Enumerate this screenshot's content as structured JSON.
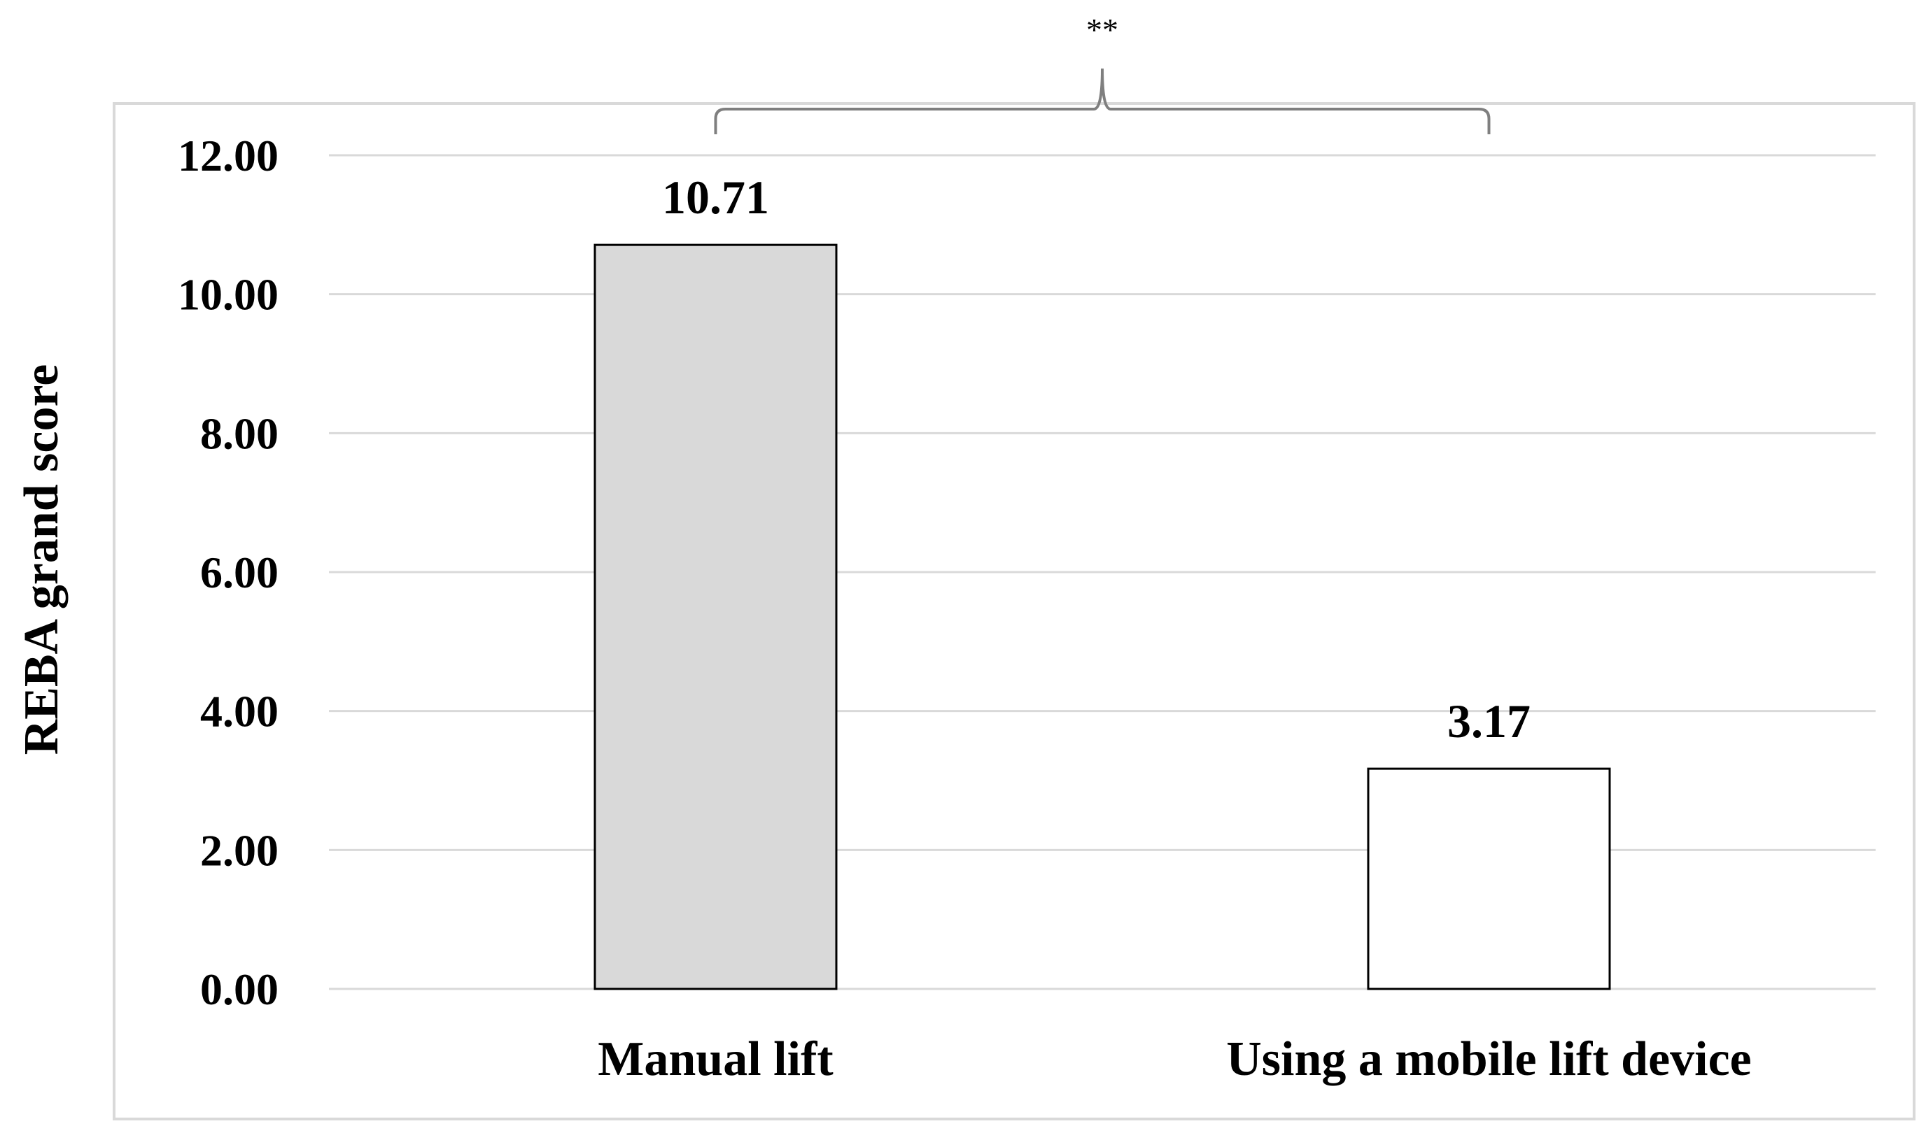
{
  "chart_data": {
    "type": "bar",
    "title": "",
    "xlabel": "",
    "ylabel": "REBA grand score",
    "categories": [
      "Manual lift",
      "Using a mobile lift device"
    ],
    "series": [
      {
        "values": [
          10.71,
          3.17
        ],
        "colors": [
          "#d9d9d9",
          "#ffffff"
        ]
      }
    ],
    "data_labels": [
      "10.71",
      "3.17"
    ],
    "ylim": [
      0,
      12
    ],
    "yticks": [
      0,
      2,
      4,
      6,
      8,
      10,
      12
    ],
    "ytick_labels": [
      "0.00",
      "2.00",
      "4.00",
      "6.00",
      "8.00",
      "10.00",
      "12.00"
    ],
    "grid": true,
    "legend": "none",
    "annotation": {
      "text": "**",
      "type": "brace",
      "spans": [
        "Manual lift",
        "Using a mobile lift device"
      ]
    },
    "colors": {
      "bar_border": "#000000",
      "grid": "#d9d9d9",
      "frame": "#d9d9d9",
      "brace": "#7f7f7f"
    }
  }
}
